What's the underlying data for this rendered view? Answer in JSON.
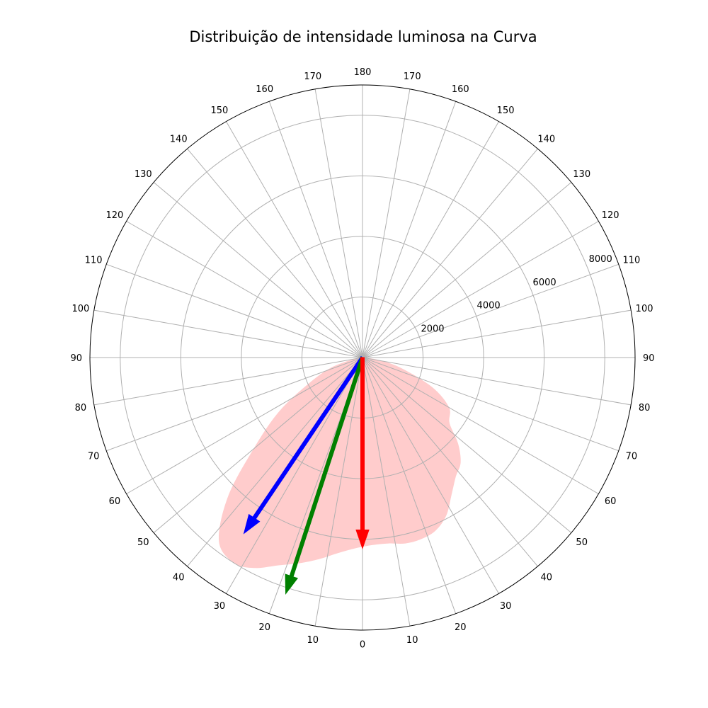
{
  "chart_data": {
    "type": "polar",
    "title": "Distribuição de intensidade luminosa na Curva",
    "angle_ticks": {
      "right": [
        "0",
        "10",
        "20",
        "30",
        "40",
        "50",
        "60",
        "70",
        "80",
        "90",
        "100",
        "110",
        "120",
        "130",
        "140",
        "150",
        "160",
        "170"
      ],
      "top": [
        "180"
      ],
      "left": [
        "10",
        "20",
        "30",
        "40",
        "50",
        "60",
        "70",
        "80",
        "90",
        "100",
        "110",
        "120",
        "130",
        "140",
        "150",
        "160",
        "170"
      ]
    },
    "angle_tick_values": {
      "right": [
        0,
        10,
        20,
        30,
        40,
        50,
        60,
        70,
        80,
        90,
        100,
        110,
        120,
        130,
        140,
        150,
        160,
        170
      ],
      "top": [
        180
      ],
      "left": [
        10,
        20,
        30,
        40,
        50,
        60,
        70,
        80,
        90,
        100,
        110,
        120,
        130,
        140,
        150,
        160,
        170
      ]
    },
    "radial_ticks": [
      "2000",
      "4000",
      "6000",
      "8000"
    ],
    "radial_tick_values": [
      2000,
      4000,
      6000,
      8000
    ],
    "rmax": 9000,
    "grid": true,
    "series": [
      {
        "kind": "filled_area",
        "color": "#ffcccc",
        "angles": [
          -90,
          -80,
          -72,
          -64,
          -57,
          -50,
          -44,
          -38,
          -32,
          -27,
          -22,
          -17,
          -12,
          -7,
          -2,
          3,
          8,
          13,
          18,
          23,
          28,
          33,
          38,
          43,
          48,
          53,
          60,
          67,
          75,
          82,
          90
        ],
        "r": [
          0,
          300,
          1100,
          2000,
          3300,
          4700,
          6400,
          7700,
          8000,
          7800,
          7400,
          7100,
          6800,
          6500,
          6300,
          6200,
          6200,
          6300,
          6300,
          6200,
          5900,
          5400,
          5000,
          4750,
          4250,
          3600,
          3300,
          2500,
          1300,
          500,
          0
        ]
      }
    ],
    "arrows": [
      {
        "color": "#0000ff",
        "angle": -34,
        "r": 7000
      },
      {
        "color": "#008000",
        "angle": -18,
        "r": 8200
      },
      {
        "color": "#ff0000",
        "angle": 0,
        "r": 6300
      }
    ]
  }
}
